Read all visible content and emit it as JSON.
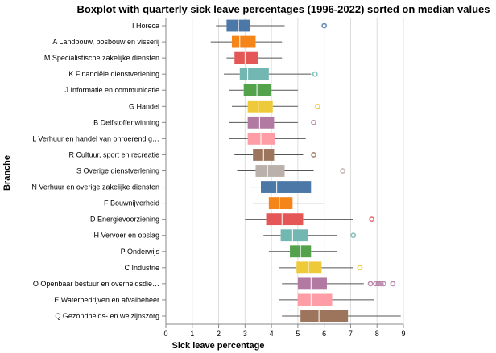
{
  "chart_data": {
    "type": "boxplot",
    "title": "Boxplot with quarterly sick leave percentages (1996-2022) sorted on median values",
    "xlabel": "Sick leave percentage",
    "ylabel": "Branche",
    "xlim": [
      0,
      9
    ],
    "x_ticks": [
      "0",
      "1",
      "2",
      "3",
      "4",
      "5",
      "6",
      "7",
      "8",
      "9"
    ],
    "grid": true,
    "series": [
      {
        "label": "I Horeca",
        "color": "#4c78a8",
        "whisker_low": 1.9,
        "q1": 2.3,
        "median": 2.75,
        "q3": 3.2,
        "whisker_high": 4.5,
        "outliers": [
          6.0
        ]
      },
      {
        "label": "A Landbouw, bosbouw en visserij",
        "color": "#f58518",
        "whisker_low": 1.7,
        "q1": 2.5,
        "median": 2.8,
        "q3": 3.4,
        "whisker_high": 4.4,
        "outliers": []
      },
      {
        "label": "M Specialistische zakelijke diensten",
        "color": "#e45756",
        "whisker_low": 2.3,
        "q1": 2.6,
        "median": 3.0,
        "q3": 3.5,
        "whisker_high": 4.4,
        "outliers": []
      },
      {
        "label": "K Financiële dienstverlening",
        "color": "#72b7b2",
        "whisker_low": 2.2,
        "q1": 2.8,
        "median": 3.1,
        "q3": 3.9,
        "whisker_high": 5.5,
        "outliers": [
          5.65
        ]
      },
      {
        "label": "J Informatie en communicatie",
        "color": "#54a24b",
        "whisker_low": 2.4,
        "q1": 2.95,
        "median": 3.45,
        "q3": 4.0,
        "whisker_high": 5.0,
        "outliers": []
      },
      {
        "label": "G Handel",
        "color": "#eeca3b",
        "whisker_low": 2.5,
        "q1": 3.1,
        "median": 3.5,
        "q3": 4.05,
        "whisker_high": 5.0,
        "outliers": [
          5.75
        ]
      },
      {
        "label": "B Delfstoffenwinning",
        "color": "#b279a2",
        "whisker_low": 2.4,
        "q1": 3.1,
        "median": 3.55,
        "q3": 4.1,
        "whisker_high": 5.0,
        "outliers": [
          5.6
        ]
      },
      {
        "label": "L Verhuur en handel van onroerend g…",
        "color": "#ff9da6",
        "whisker_low": 2.4,
        "q1": 3.1,
        "median": 3.6,
        "q3": 4.15,
        "whisker_high": 5.3,
        "outliers": []
      },
      {
        "label": "R Cultuur, sport en recreatie",
        "color": "#9d755d",
        "whisker_low": 2.6,
        "q1": 3.3,
        "median": 3.7,
        "q3": 4.1,
        "whisker_high": 5.2,
        "outliers": [
          5.6
        ]
      },
      {
        "label": "S Overige dienstverlening",
        "color": "#bab0ac",
        "whisker_low": 2.7,
        "q1": 3.4,
        "median": 3.85,
        "q3": 4.5,
        "whisker_high": 5.6,
        "outliers": [
          6.7
        ]
      },
      {
        "label": "N Verhuur en overige zakelijke diensten",
        "color": "#4c78a8",
        "whisker_low": 3.2,
        "q1": 3.6,
        "median": 4.2,
        "q3": 5.5,
        "whisker_high": 7.1,
        "outliers": []
      },
      {
        "label": "F Bouwnijverheid",
        "color": "#f58518",
        "whisker_low": 3.3,
        "q1": 3.9,
        "median": 4.3,
        "q3": 4.8,
        "whisker_high": 6.0,
        "outliers": []
      },
      {
        "label": "D Energievoorziening",
        "color": "#e45756",
        "whisker_low": 3.0,
        "q1": 3.8,
        "median": 4.4,
        "q3": 5.2,
        "whisker_high": 7.1,
        "outliers": [
          7.8
        ]
      },
      {
        "label": "H Vervoer en opslag",
        "color": "#72b7b2",
        "whisker_low": 3.7,
        "q1": 4.35,
        "median": 4.8,
        "q3": 5.4,
        "whisker_high": 6.5,
        "outliers": [
          7.1
        ]
      },
      {
        "label": "P Onderwijs",
        "color": "#54a24b",
        "whisker_low": 3.9,
        "q1": 4.7,
        "median": 5.1,
        "q3": 5.5,
        "whisker_high": 6.5,
        "outliers": []
      },
      {
        "label": "C Industrie",
        "color": "#eeca3b",
        "whisker_low": 4.3,
        "q1": 4.95,
        "median": 5.4,
        "q3": 5.9,
        "whisker_high": 7.1,
        "outliers": [
          7.35
        ]
      },
      {
        "label": "O Openbaar bestuur en overheidsdie…",
        "color": "#b279a2",
        "whisker_low": 4.4,
        "q1": 5.0,
        "median": 5.5,
        "q3": 6.1,
        "whisker_high": 7.5,
        "outliers": [
          7.75,
          7.95,
          8.05,
          8.15,
          8.25,
          8.6
        ]
      },
      {
        "label": "E Waterbedrijven en afvalbeheer",
        "color": "#ff9da6",
        "whisker_low": 4.3,
        "q1": 5.0,
        "median": 5.5,
        "q3": 6.3,
        "whisker_high": 7.9,
        "outliers": []
      },
      {
        "label": "Q Gezondheids- en welzijnszorg",
        "color": "#9d755d",
        "whisker_low": 4.4,
        "q1": 5.1,
        "median": 5.8,
        "q3": 6.9,
        "whisker_high": 8.9,
        "outliers": []
      }
    ]
  }
}
